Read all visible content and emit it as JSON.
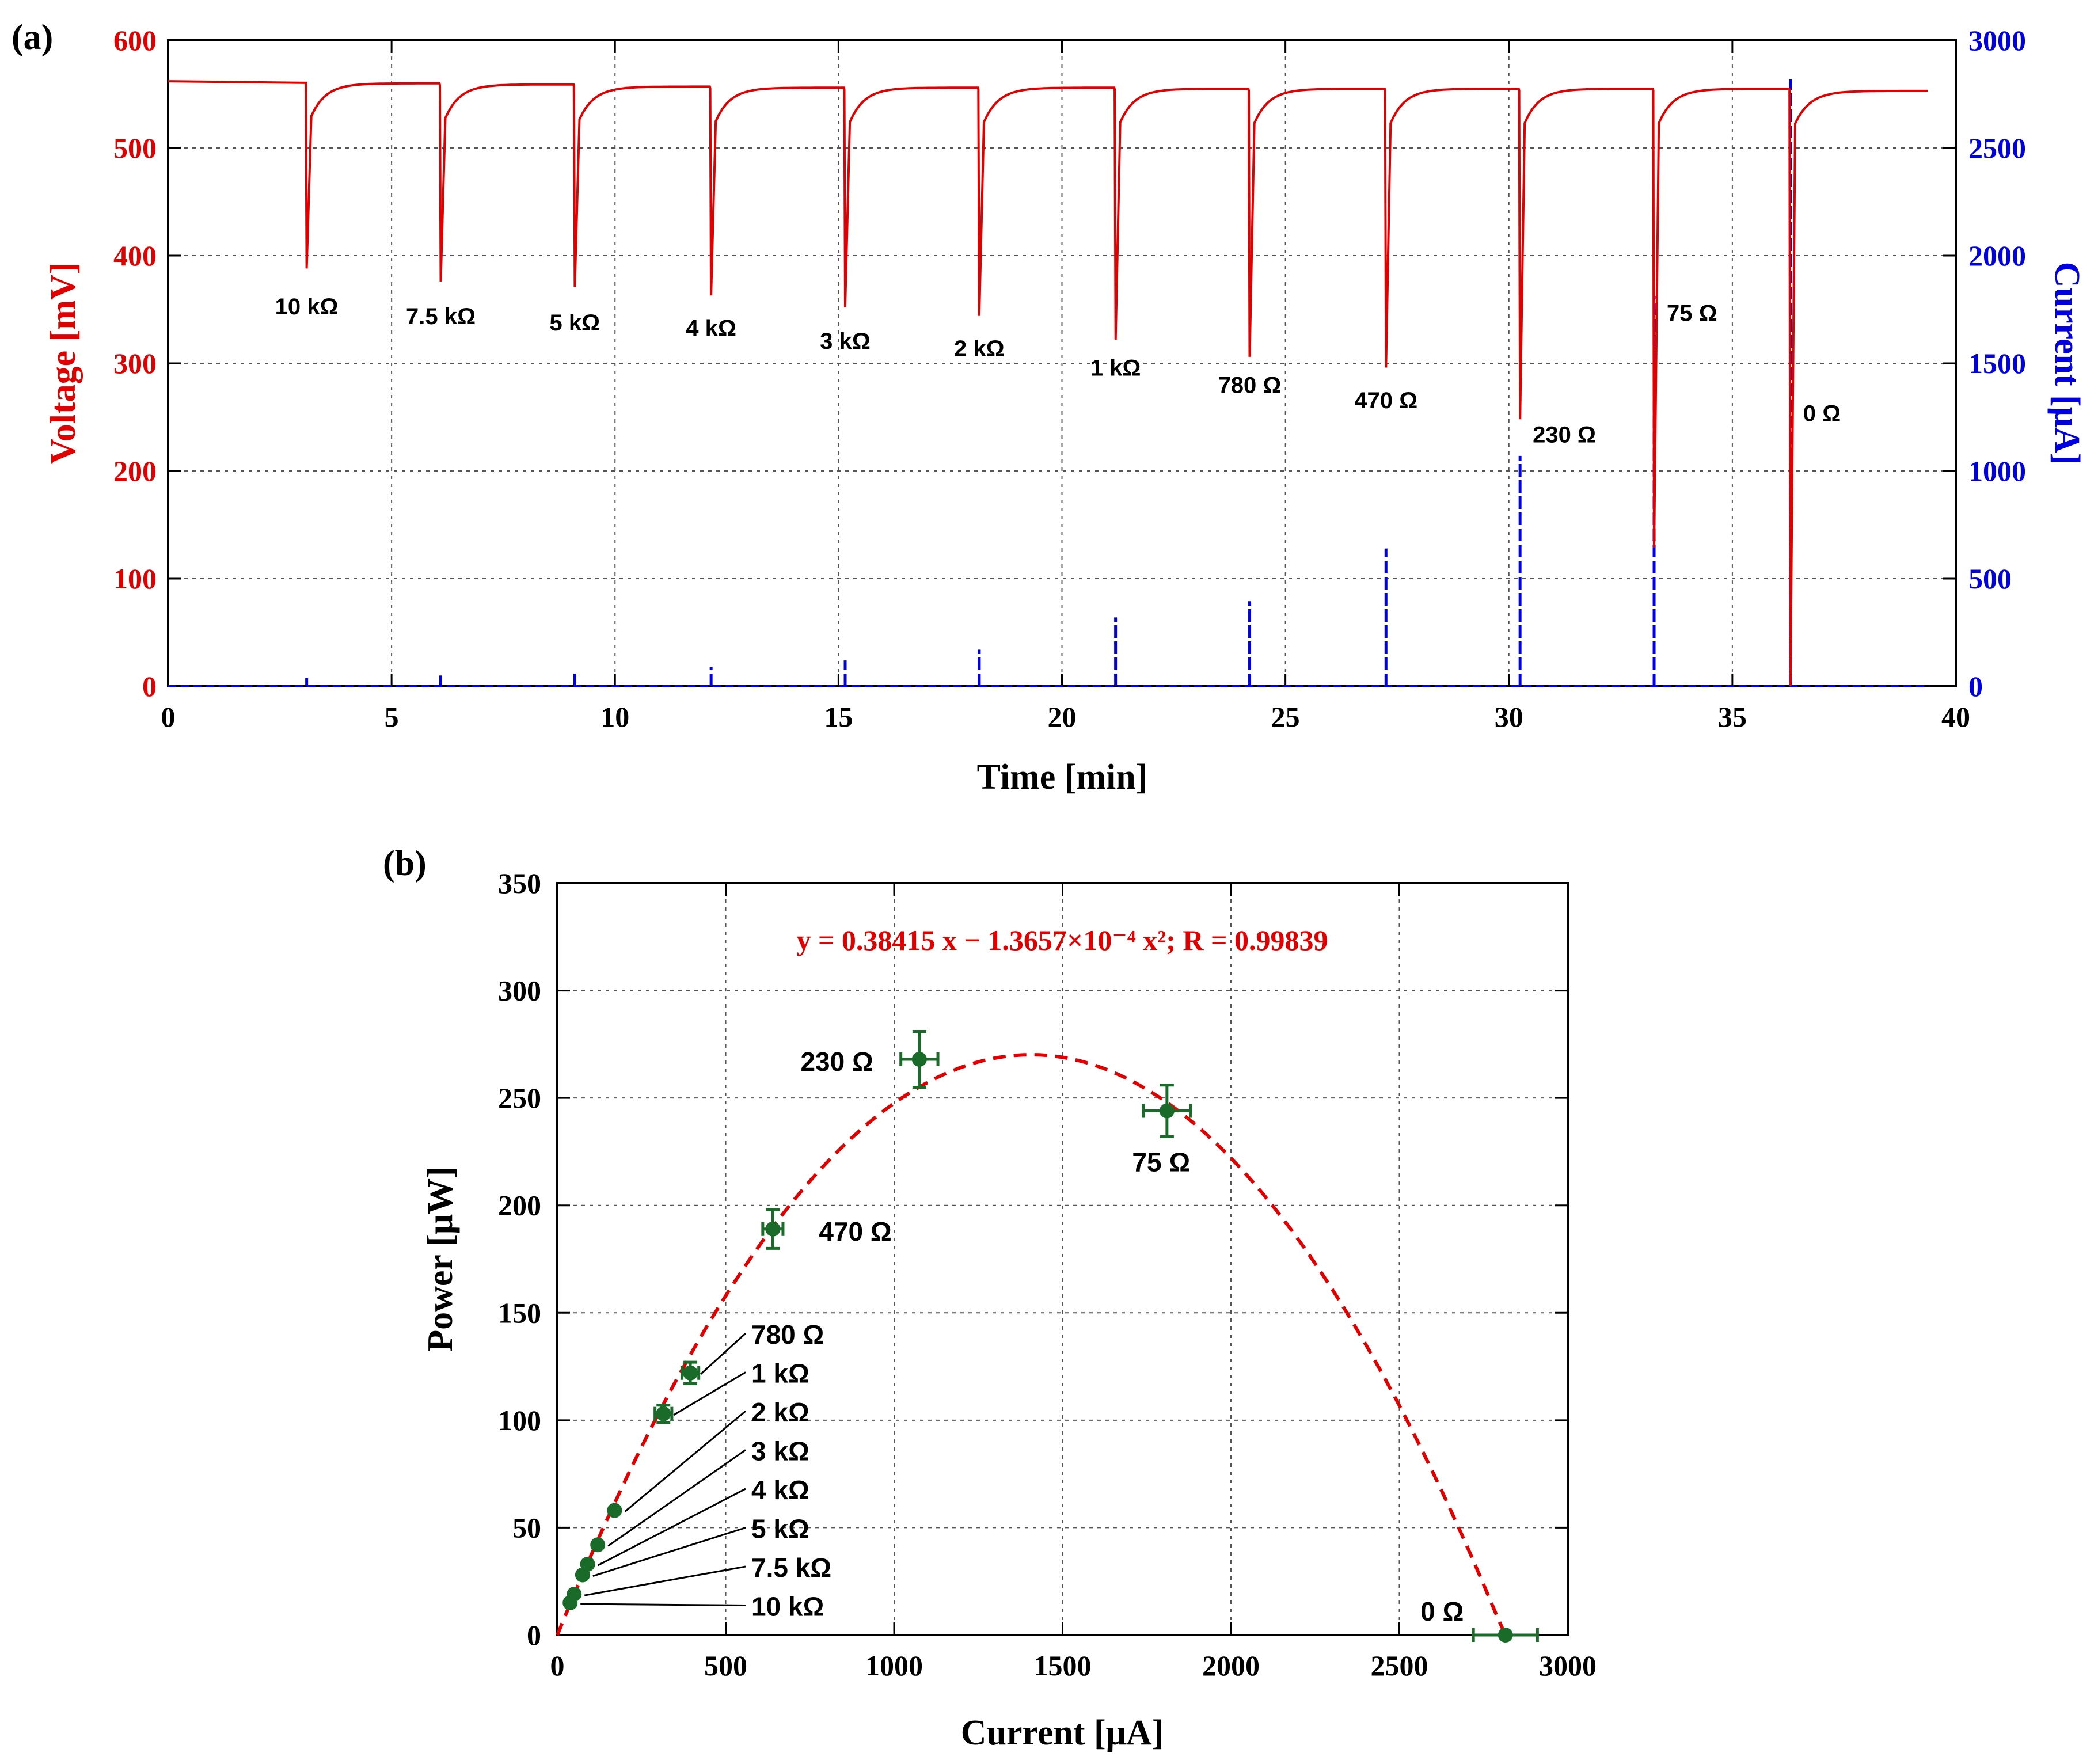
{
  "chart_data": [
    {
      "type": "line",
      "panel_label": "(a)",
      "xlabel": "Time [min]",
      "ylabel_left": "Voltage [mV]",
      "ylabel_right": "Current [μA]",
      "xlim": [
        0,
        40
      ],
      "ylim_left": [
        0,
        600
      ],
      "ylim_right": [
        0,
        3000
      ],
      "xticks": [
        "0",
        "5",
        "10",
        "15",
        "20",
        "25",
        "30",
        "35",
        "40"
      ],
      "yticks_left": [
        "0",
        "100",
        "200",
        "300",
        "400",
        "500",
        "600"
      ],
      "yticks_right": [
        "0",
        "500",
        "1000",
        "1500",
        "2000",
        "2500",
        "3000"
      ],
      "grid": true,
      "colors": {
        "voltage": "#e00000",
        "current": "#0000e0"
      },
      "series": [
        {
          "name": "Voltage",
          "axis": "left",
          "start_value": 562,
          "end_time": 39.4,
          "events": [
            {
              "t": 3.1,
              "min": 388,
              "plateau": 560
            },
            {
              "t": 6.1,
              "min": 376,
              "plateau": 559
            },
            {
              "t": 9.1,
              "min": 371,
              "plateau": 557
            },
            {
              "t": 12.15,
              "min": 363,
              "plateau": 556
            },
            {
              "t": 15.15,
              "min": 352,
              "plateau": 556
            },
            {
              "t": 18.15,
              "min": 344,
              "plateau": 556
            },
            {
              "t": 21.2,
              "min": 322,
              "plateau": 555
            },
            {
              "t": 24.2,
              "min": 306,
              "plateau": 555
            },
            {
              "t": 27.25,
              "min": 296,
              "plateau": 555
            },
            {
              "t": 30.25,
              "min": 248,
              "plateau": 555
            },
            {
              "t": 33.25,
              "min": 129,
              "plateau": 555
            },
            {
              "t": 36.3,
              "min": 0,
              "plateau": 553
            }
          ]
        },
        {
          "name": "Current",
          "axis": "right",
          "baseline": 0,
          "spikes": [
            {
              "t": 3.1,
              "peak": 38
            },
            {
              "t": 6.1,
              "peak": 50
            },
            {
              "t": 9.1,
              "peak": 75
            },
            {
              "t": 12.15,
              "peak": 90
            },
            {
              "t": 15.15,
              "peak": 120
            },
            {
              "t": 18.15,
              "peak": 170
            },
            {
              "t": 21.2,
              "peak": 320
            },
            {
              "t": 24.2,
              "peak": 395
            },
            {
              "t": 27.25,
              "peak": 640
            },
            {
              "t": 30.25,
              "peak": 1070
            },
            {
              "t": 33.25,
              "peak": 1810
            },
            {
              "t": 36.3,
              "peak": 2820
            }
          ]
        }
      ],
      "annotations": [
        {
          "text": "10 kΩ",
          "t": 3.1,
          "v": 355
        },
        {
          "text": "7.5 kΩ",
          "t": 6.1,
          "v": 346
        },
        {
          "text": "5 kΩ",
          "t": 9.1,
          "v": 340
        },
        {
          "text": "4 kΩ",
          "t": 12.15,
          "v": 335
        },
        {
          "text": "3 kΩ",
          "t": 15.15,
          "v": 323
        },
        {
          "text": "2 kΩ",
          "t": 18.15,
          "v": 316
        },
        {
          "text": "1 kΩ",
          "t": 21.2,
          "v": 298
        },
        {
          "text": "780 Ω",
          "t": 24.2,
          "v": 282
        },
        {
          "text": "470 Ω",
          "t": 27.25,
          "v": 268
        },
        {
          "text": "230 Ω",
          "t": 30.25,
          "v": 236
        },
        {
          "text": "75 Ω",
          "t": 33.25,
          "v": 349
        },
        {
          "text": "0 Ω",
          "t": 36.3,
          "v": 256
        }
      ]
    },
    {
      "type": "scatter",
      "panel_label": "(b)",
      "xlabel": "Current [μA]",
      "ylabel": "Power [μW]",
      "xlim": [
        0,
        3000
      ],
      "ylim": [
        0,
        350
      ],
      "xticks": [
        "0",
        "500",
        "1000",
        "1500",
        "2000",
        "2500",
        "3000"
      ],
      "yticks": [
        "0",
        "50",
        "100",
        "150",
        "200",
        "250",
        "300",
        "350"
      ],
      "grid": true,
      "colors": {
        "points": "#1a6b2a",
        "fit": "#e00000"
      },
      "fit": {
        "equation": "y = 0.38415 x  − 1.3657×10⁻⁴ x²;   R = 0.99839",
        "a": 0.38415,
        "b": -0.00013657,
        "x_range": [
          0,
          2815
        ]
      },
      "points": [
        {
          "label": "10 kΩ",
          "x": 38,
          "y": 15,
          "xerr": 0,
          "yerr": 0
        },
        {
          "label": "7.5 kΩ",
          "x": 50,
          "y": 19,
          "xerr": 0,
          "yerr": 0
        },
        {
          "label": "5 kΩ",
          "x": 75,
          "y": 28,
          "xerr": 0,
          "yerr": 0
        },
        {
          "label": "4 kΩ",
          "x": 90,
          "y": 33,
          "xerr": 0,
          "yerr": 0
        },
        {
          "label": "3 kΩ",
          "x": 120,
          "y": 42,
          "xerr": 0,
          "yerr": 0
        },
        {
          "label": "2 kΩ",
          "x": 170,
          "y": 58,
          "xerr": 0,
          "yerr": 0
        },
        {
          "label": "1 kΩ",
          "x": 315,
          "y": 103,
          "xerr": 25,
          "yerr": 4
        },
        {
          "label": "780 Ω",
          "x": 395,
          "y": 122,
          "xerr": 25,
          "yerr": 5
        },
        {
          "label": "470 Ω",
          "x": 640,
          "y": 189,
          "xerr": 30,
          "yerr": 9
        },
        {
          "label": "230 Ω",
          "x": 1075,
          "y": 268,
          "xerr": 55,
          "yerr": 13
        },
        {
          "label": "75 Ω",
          "x": 1810,
          "y": 244,
          "xerr": 70,
          "yerr": 12
        },
        {
          "label": "0 Ω",
          "x": 2815,
          "y": 0,
          "xerr": 95,
          "yerr": 0
        }
      ],
      "leader_labels": [
        "780 Ω",
        "1 kΩ",
        "2 kΩ",
        "3 kΩ",
        "4 kΩ",
        "5 kΩ",
        "7.5 kΩ",
        "10 kΩ"
      ],
      "direct_labels": [
        "230 Ω",
        "75 Ω",
        "470 Ω",
        "0 Ω"
      ]
    }
  ]
}
